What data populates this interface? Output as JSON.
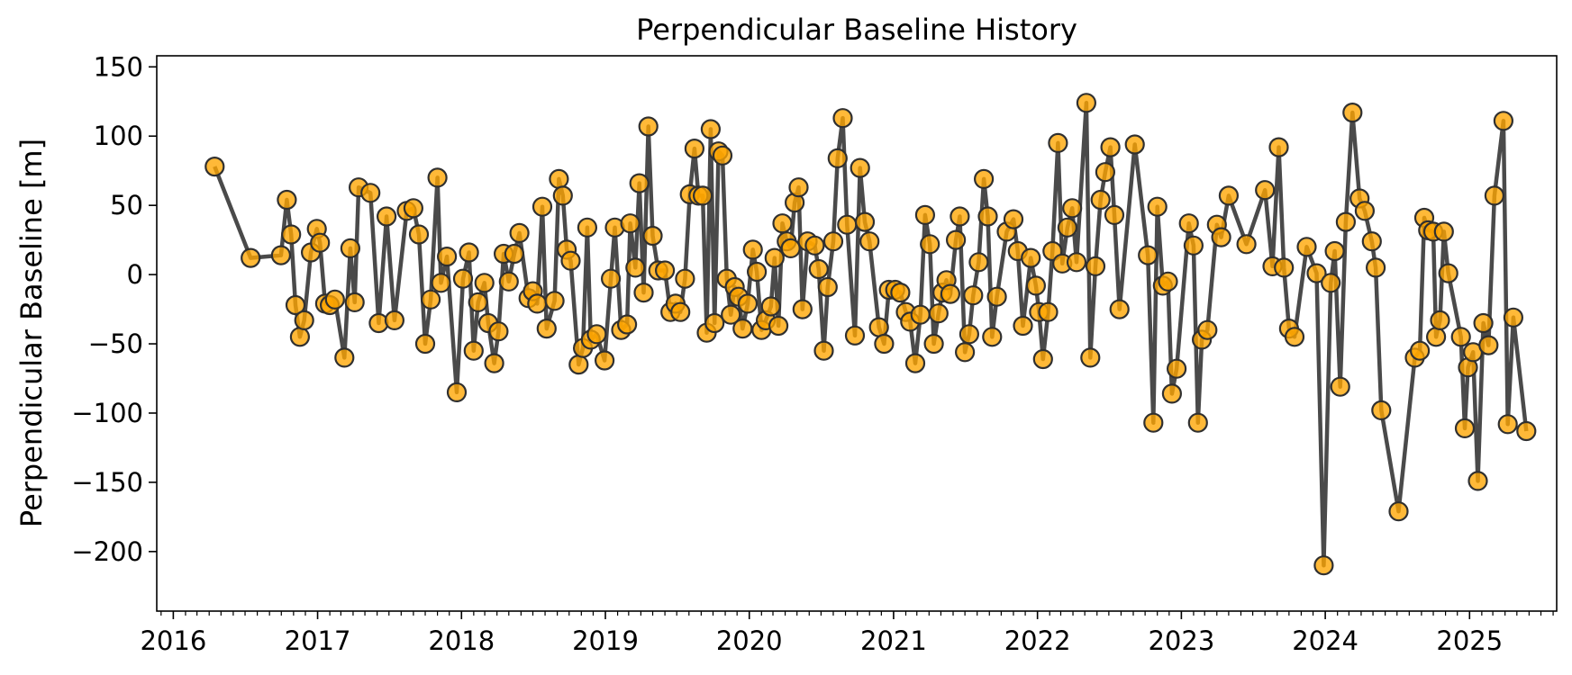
{
  "chart_data": {
    "type": "line",
    "title": "Perpendicular Baseline History",
    "xlabel": "",
    "ylabel": "Perpendicular Baseline [m]",
    "xlim": [
      "2015-11-20",
      "2025-08-10"
    ],
    "ylim": [
      -243,
      158
    ],
    "x_tick_labels": [
      "2016",
      "2017",
      "2018",
      "2019",
      "2020",
      "2021",
      "2022",
      "2023",
      "2024",
      "2025"
    ],
    "y_tick_labels": [
      "150",
      "100",
      "50",
      "0",
      "−50",
      "−100",
      "−150",
      "−200"
    ],
    "y_ticks": [
      150,
      100,
      50,
      0,
      -50,
      -100,
      -150,
      -200
    ],
    "grid": false,
    "series": [
      {
        "line_color": "#404040",
        "marker_fill": "#ffa500",
        "marker_edge": "#303030",
        "points": [
          {
            "x": "2016-04-15",
            "y": 78
          },
          {
            "x": "2016-07-15",
            "y": 12
          },
          {
            "x": "2016-09-30",
            "y": 14
          },
          {
            "x": "2016-10-15",
            "y": 54
          },
          {
            "x": "2016-10-26",
            "y": 29
          },
          {
            "x": "2016-11-06",
            "y": -22
          },
          {
            "x": "2016-11-17",
            "y": -45
          },
          {
            "x": "2016-11-28",
            "y": -33
          },
          {
            "x": "2016-12-15",
            "y": 16
          },
          {
            "x": "2016-12-30",
            "y": 33
          },
          {
            "x": "2017-01-07",
            "y": 23
          },
          {
            "x": "2017-01-20",
            "y": -21
          },
          {
            "x": "2017-02-01",
            "y": -22
          },
          {
            "x": "2017-02-14",
            "y": -18
          },
          {
            "x": "2017-03-10",
            "y": -60
          },
          {
            "x": "2017-03-25",
            "y": 19
          },
          {
            "x": "2017-04-05",
            "y": -20
          },
          {
            "x": "2017-04-15",
            "y": 63
          },
          {
            "x": "2017-05-15",
            "y": 59
          },
          {
            "x": "2017-06-05",
            "y": -35
          },
          {
            "x": "2017-06-25",
            "y": 42
          },
          {
            "x": "2017-07-15",
            "y": -33
          },
          {
            "x": "2017-08-15",
            "y": 46
          },
          {
            "x": "2017-09-01",
            "y": 48
          },
          {
            "x": "2017-09-15",
            "y": 29
          },
          {
            "x": "2017-10-01",
            "y": -50
          },
          {
            "x": "2017-10-15",
            "y": -18
          },
          {
            "x": "2017-11-01",
            "y": 70
          },
          {
            "x": "2017-11-10",
            "y": -6
          },
          {
            "x": "2017-11-25",
            "y": 13
          },
          {
            "x": "2017-12-20",
            "y": -85
          },
          {
            "x": "2018-01-05",
            "y": -3
          },
          {
            "x": "2018-01-20",
            "y": 16
          },
          {
            "x": "2018-02-01",
            "y": -55
          },
          {
            "x": "2018-02-12",
            "y": -20
          },
          {
            "x": "2018-02-28",
            "y": -6
          },
          {
            "x": "2018-03-10",
            "y": -35
          },
          {
            "x": "2018-03-25",
            "y": -64
          },
          {
            "x": "2018-04-05",
            "y": -41
          },
          {
            "x": "2018-04-18",
            "y": 15
          },
          {
            "x": "2018-05-01",
            "y": -5
          },
          {
            "x": "2018-05-15",
            "y": 15
          },
          {
            "x": "2018-05-28",
            "y": 30
          },
          {
            "x": "2018-06-20",
            "y": -17
          },
          {
            "x": "2018-07-01",
            "y": -12
          },
          {
            "x": "2018-07-12",
            "y": -21
          },
          {
            "x": "2018-07-25",
            "y": 49
          },
          {
            "x": "2018-08-05",
            "y": -39
          },
          {
            "x": "2018-08-25",
            "y": -19
          },
          {
            "x": "2018-09-05",
            "y": 69
          },
          {
            "x": "2018-09-15",
            "y": 57
          },
          {
            "x": "2018-09-25",
            "y": 18
          },
          {
            "x": "2018-10-05",
            "y": 10
          },
          {
            "x": "2018-10-25",
            "y": -65
          },
          {
            "x": "2018-11-05",
            "y": -53
          },
          {
            "x": "2018-11-16",
            "y": 34
          },
          {
            "x": "2018-11-25",
            "y": -47
          },
          {
            "x": "2018-12-10",
            "y": -43
          },
          {
            "x": "2018-12-30",
            "y": -62
          },
          {
            "x": "2019-01-15",
            "y": -3
          },
          {
            "x": "2019-01-25",
            "y": 34
          },
          {
            "x": "2019-02-10",
            "y": -40
          },
          {
            "x": "2019-02-25",
            "y": -36
          },
          {
            "x": "2019-03-05",
            "y": 37
          },
          {
            "x": "2019-03-18",
            "y": 5
          },
          {
            "x": "2019-03-28",
            "y": 66
          },
          {
            "x": "2019-04-08",
            "y": -13
          },
          {
            "x": "2019-04-20",
            "y": 107
          },
          {
            "x": "2019-05-01",
            "y": 28
          },
          {
            "x": "2019-05-15",
            "y": 3
          },
          {
            "x": "2019-06-01",
            "y": 3
          },
          {
            "x": "2019-06-15",
            "y": -27
          },
          {
            "x": "2019-06-28",
            "y": -21
          },
          {
            "x": "2019-07-10",
            "y": -27
          },
          {
            "x": "2019-07-22",
            "y": -3
          },
          {
            "x": "2019-08-03",
            "y": 58
          },
          {
            "x": "2019-08-15",
            "y": 91
          },
          {
            "x": "2019-08-25",
            "y": 57
          },
          {
            "x": "2019-09-05",
            "y": 57
          },
          {
            "x": "2019-09-15",
            "y": -42
          },
          {
            "x": "2019-09-25",
            "y": 105
          },
          {
            "x": "2019-10-05",
            "y": -35
          },
          {
            "x": "2019-10-15",
            "y": 89
          },
          {
            "x": "2019-10-25",
            "y": 86
          },
          {
            "x": "2019-11-05",
            "y": -3
          },
          {
            "x": "2019-11-15",
            "y": -29
          },
          {
            "x": "2019-11-25",
            "y": -9
          },
          {
            "x": "2019-12-05",
            "y": -16
          },
          {
            "x": "2019-12-15",
            "y": -39
          },
          {
            "x": "2019-12-28",
            "y": -21
          },
          {
            "x": "2020-01-10",
            "y": 18
          },
          {
            "x": "2020-01-20",
            "y": 2
          },
          {
            "x": "2020-02-01",
            "y": -40
          },
          {
            "x": "2020-02-12",
            "y": -33
          },
          {
            "x": "2020-02-25",
            "y": -23
          },
          {
            "x": "2020-03-05",
            "y": 12
          },
          {
            "x": "2020-03-15",
            "y": -37
          },
          {
            "x": "2020-03-25",
            "y": 37
          },
          {
            "x": "2020-04-05",
            "y": 24
          },
          {
            "x": "2020-04-15",
            "y": 19
          },
          {
            "x": "2020-04-25",
            "y": 52
          },
          {
            "x": "2020-05-05",
            "y": 63
          },
          {
            "x": "2020-05-15",
            "y": -25
          },
          {
            "x": "2020-05-28",
            "y": 24
          },
          {
            "x": "2020-06-15",
            "y": 21
          },
          {
            "x": "2020-06-25",
            "y": 4
          },
          {
            "x": "2020-07-08",
            "y": -55
          },
          {
            "x": "2020-07-18",
            "y": -9
          },
          {
            "x": "2020-08-01",
            "y": 24
          },
          {
            "x": "2020-08-12",
            "y": 84
          },
          {
            "x": "2020-08-25",
            "y": 113
          },
          {
            "x": "2020-09-05",
            "y": 36
          },
          {
            "x": "2020-09-25",
            "y": -44
          },
          {
            "x": "2020-10-08",
            "y": 77
          },
          {
            "x": "2020-10-20",
            "y": 38
          },
          {
            "x": "2020-11-01",
            "y": 24
          },
          {
            "x": "2020-11-25",
            "y": -38
          },
          {
            "x": "2020-12-08",
            "y": -50
          },
          {
            "x": "2020-12-20",
            "y": -11
          },
          {
            "x": "2021-01-05",
            "y": -11
          },
          {
            "x": "2021-01-18",
            "y": -13
          },
          {
            "x": "2021-02-01",
            "y": -27
          },
          {
            "x": "2021-02-12",
            "y": -34
          },
          {
            "x": "2021-02-25",
            "y": -64
          },
          {
            "x": "2021-03-10",
            "y": -29
          },
          {
            "x": "2021-03-22",
            "y": 43
          },
          {
            "x": "2021-04-03",
            "y": 22
          },
          {
            "x": "2021-04-13",
            "y": -50
          },
          {
            "x": "2021-04-25",
            "y": -28
          },
          {
            "x": "2021-05-05",
            "y": -13
          },
          {
            "x": "2021-05-15",
            "y": -4
          },
          {
            "x": "2021-05-25",
            "y": -14
          },
          {
            "x": "2021-06-08",
            "y": 25
          },
          {
            "x": "2021-06-18",
            "y": 42
          },
          {
            "x": "2021-07-01",
            "y": -56
          },
          {
            "x": "2021-07-12",
            "y": -43
          },
          {
            "x": "2021-07-22",
            "y": -15
          },
          {
            "x": "2021-08-05",
            "y": 9
          },
          {
            "x": "2021-08-18",
            "y": 69
          },
          {
            "x": "2021-08-28",
            "y": 42
          },
          {
            "x": "2021-09-08",
            "y": -45
          },
          {
            "x": "2021-09-20",
            "y": -16
          },
          {
            "x": "2021-10-15",
            "y": 31
          },
          {
            "x": "2021-11-01",
            "y": 40
          },
          {
            "x": "2021-11-12",
            "y": 17
          },
          {
            "x": "2021-11-25",
            "y": -37
          },
          {
            "x": "2021-12-15",
            "y": 12
          },
          {
            "x": "2021-12-28",
            "y": -8
          },
          {
            "x": "2022-01-05",
            "y": -27
          },
          {
            "x": "2022-01-15",
            "y": -61
          },
          {
            "x": "2022-01-28",
            "y": -27
          },
          {
            "x": "2022-02-08",
            "y": 17
          },
          {
            "x": "2022-02-22",
            "y": 95
          },
          {
            "x": "2022-03-05",
            "y": 8
          },
          {
            "x": "2022-03-18",
            "y": 34
          },
          {
            "x": "2022-03-30",
            "y": 48
          },
          {
            "x": "2022-04-10",
            "y": 9
          },
          {
            "x": "2022-05-05",
            "y": 124
          },
          {
            "x": "2022-05-15",
            "y": -60
          },
          {
            "x": "2022-05-28",
            "y": 6
          },
          {
            "x": "2022-06-10",
            "y": 54
          },
          {
            "x": "2022-06-22",
            "y": 74
          },
          {
            "x": "2022-07-05",
            "y": 92
          },
          {
            "x": "2022-07-15",
            "y": 43
          },
          {
            "x": "2022-07-28",
            "y": -25
          },
          {
            "x": "2022-09-05",
            "y": 94
          },
          {
            "x": "2022-10-08",
            "y": 14
          },
          {
            "x": "2022-10-22",
            "y": -107
          },
          {
            "x": "2022-11-01",
            "y": 49
          },
          {
            "x": "2022-11-15",
            "y": -8
          },
          {
            "x": "2022-11-28",
            "y": -5
          },
          {
            "x": "2022-12-08",
            "y": -86
          },
          {
            "x": "2022-12-20",
            "y": -68
          },
          {
            "x": "2023-01-20",
            "y": 37
          },
          {
            "x": "2023-02-01",
            "y": 21
          },
          {
            "x": "2023-02-12",
            "y": -107
          },
          {
            "x": "2023-02-22",
            "y": -47
          },
          {
            "x": "2023-03-08",
            "y": -40
          },
          {
            "x": "2023-04-01",
            "y": 36
          },
          {
            "x": "2023-04-12",
            "y": 27
          },
          {
            "x": "2023-05-01",
            "y": 57
          },
          {
            "x": "2023-06-15",
            "y": 22
          },
          {
            "x": "2023-08-01",
            "y": 61
          },
          {
            "x": "2023-08-20",
            "y": 6
          },
          {
            "x": "2023-09-05",
            "y": 92
          },
          {
            "x": "2023-09-18",
            "y": 5
          },
          {
            "x": "2023-10-01",
            "y": -39
          },
          {
            "x": "2023-10-15",
            "y": -45
          },
          {
            "x": "2023-11-15",
            "y": 20
          },
          {
            "x": "2023-12-10",
            "y": 1
          },
          {
            "x": "2023-12-28",
            "y": -210
          },
          {
            "x": "2024-01-15",
            "y": -6
          },
          {
            "x": "2024-01-25",
            "y": 17
          },
          {
            "x": "2024-02-08",
            "y": -81
          },
          {
            "x": "2024-02-22",
            "y": 38
          },
          {
            "x": "2024-03-10",
            "y": 117
          },
          {
            "x": "2024-03-28",
            "y": 55
          },
          {
            "x": "2024-04-10",
            "y": 46
          },
          {
            "x": "2024-04-28",
            "y": 24
          },
          {
            "x": "2024-05-08",
            "y": 5
          },
          {
            "x": "2024-05-22",
            "y": -98
          },
          {
            "x": "2024-07-05",
            "y": -171
          },
          {
            "x": "2024-08-15",
            "y": -60
          },
          {
            "x": "2024-08-28",
            "y": -55
          },
          {
            "x": "2024-09-08",
            "y": 41
          },
          {
            "x": "2024-09-18",
            "y": 32
          },
          {
            "x": "2024-10-01",
            "y": 31
          },
          {
            "x": "2024-10-08",
            "y": -45
          },
          {
            "x": "2024-10-18",
            "y": -33
          },
          {
            "x": "2024-10-28",
            "y": 31
          },
          {
            "x": "2024-11-08",
            "y": 1
          },
          {
            "x": "2024-12-10",
            "y": -45
          },
          {
            "x": "2024-12-20",
            "y": -111
          },
          {
            "x": "2024-12-28",
            "y": -67
          },
          {
            "x": "2025-01-10",
            "y": -56
          },
          {
            "x": "2025-01-22",
            "y": -149
          },
          {
            "x": "2025-02-05",
            "y": -35
          },
          {
            "x": "2025-02-18",
            "y": -51
          },
          {
            "x": "2025-03-05",
            "y": 57
          },
          {
            "x": "2025-03-28",
            "y": 111
          },
          {
            "x": "2025-04-08",
            "y": -108
          },
          {
            "x": "2025-04-22",
            "y": -31
          },
          {
            "x": "2025-05-25",
            "y": -113
          }
        ]
      }
    ]
  }
}
